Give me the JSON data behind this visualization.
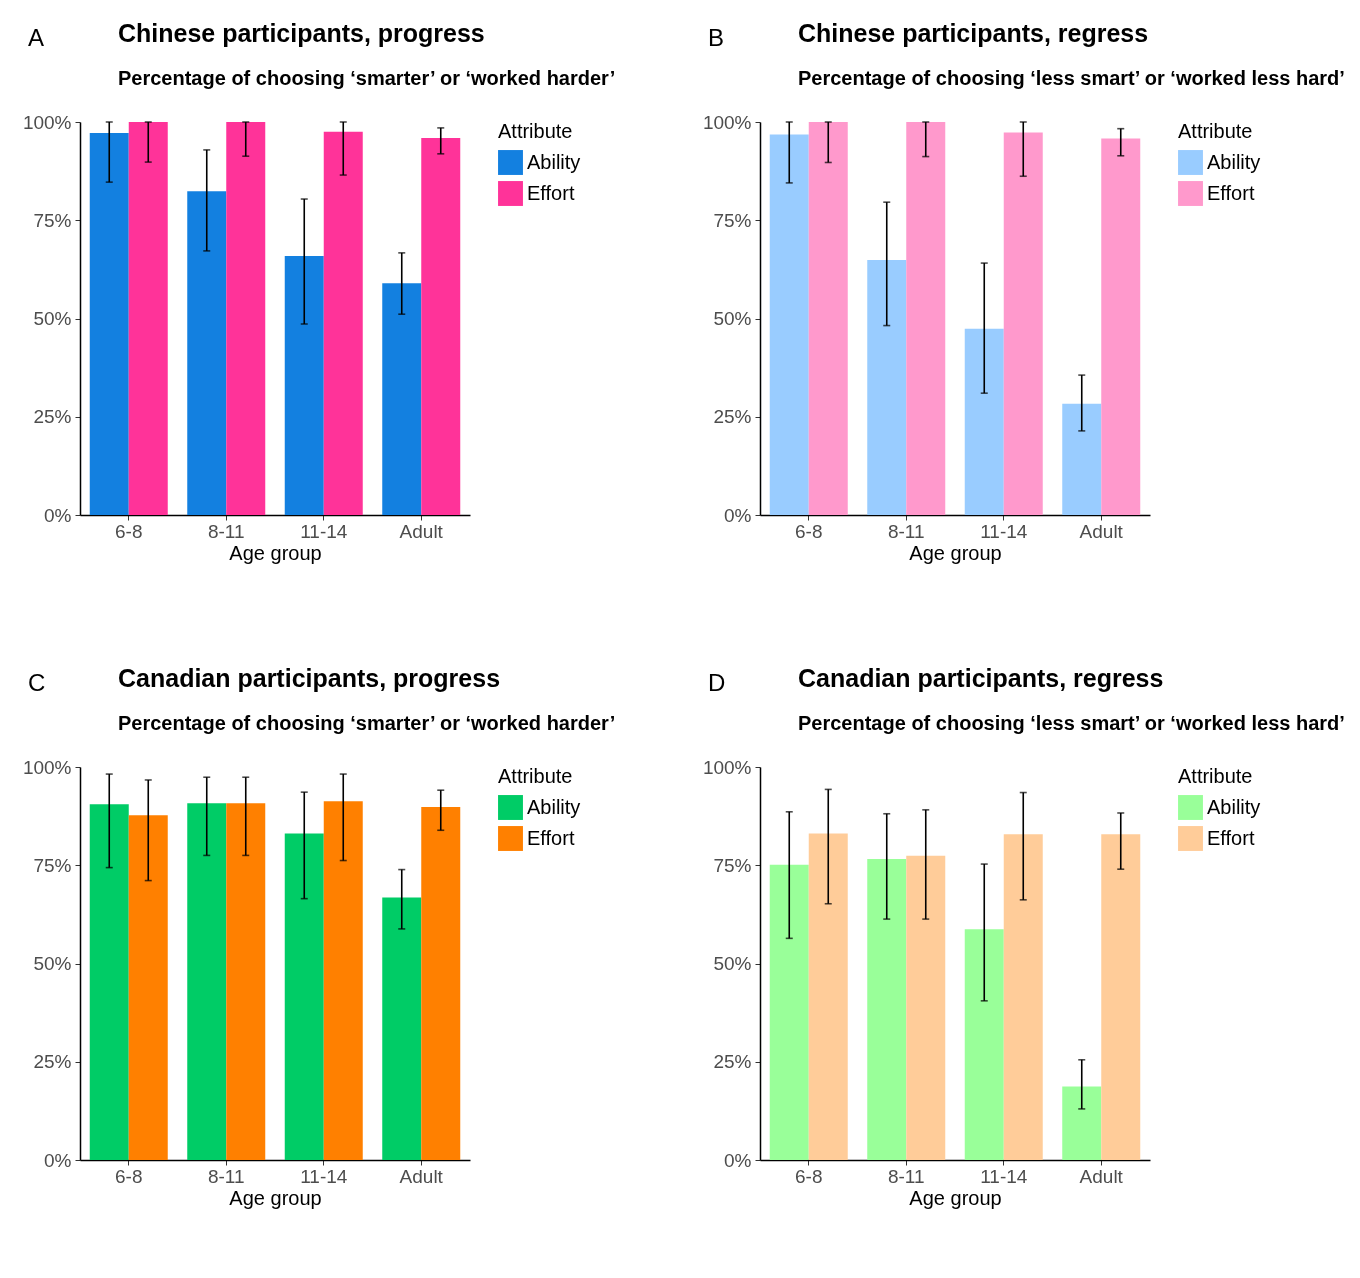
{
  "chart_data": [
    {
      "type": "bar",
      "title": "Chinese participants, progress",
      "subtitle": "Percentage of choosing ‘smarter’ or ‘worked harder’",
      "annotations": [
        "A"
      ],
      "xlabel": "Age group",
      "legend_title": "Attribute",
      "legend": "right",
      "categories": [
        "6-8",
        "8-11",
        "11-14",
        "Adult"
      ],
      "ylim": [
        0,
        100
      ],
      "yticks": [
        {
          "value": 0,
          "label": "0%"
        },
        {
          "value": 25,
          "label": "25%"
        },
        {
          "value": 50,
          "label": "50%"
        },
        {
          "value": 75,
          "label": "75%"
        },
        {
          "value": 100,
          "label": "100%"
        }
      ],
      "series": [
        {
          "name": "Ability",
          "color": "#1380e0",
          "values": [
            97.2,
            82.4,
            65.9,
            59.0
          ],
          "errors": [
            [
              84.7,
              100
            ],
            [
              67.2,
              92.9
            ],
            [
              48.6,
              80.4
            ],
            [
              51.1,
              66.7
            ]
          ]
        },
        {
          "name": "Effort",
          "color": "#ff3399",
          "values": [
            100,
            100,
            97.5,
            95.9
          ],
          "errors": [
            [
              89.8,
              100
            ],
            [
              91.3,
              100
            ],
            [
              86.5,
              100
            ],
            [
              91.9,
              98.5
            ]
          ]
        }
      ]
    },
    {
      "type": "bar",
      "title": "Chinese participants, regress",
      "subtitle": "Percentage of choosing ‘less smart’ or ‘worked less hard’",
      "annotations": [
        "B"
      ],
      "xlabel": "Age group",
      "legend_title": "Attribute",
      "legend": "right",
      "categories": [
        "6-8",
        "8-11",
        "11-14",
        "Adult"
      ],
      "ylim": [
        0,
        100
      ],
      "yticks": [
        {
          "value": 0,
          "label": "0%"
        },
        {
          "value": 25,
          "label": "25%"
        },
        {
          "value": 50,
          "label": "50%"
        },
        {
          "value": 75,
          "label": "75%"
        },
        {
          "value": 100,
          "label": "100%"
        }
      ],
      "series": [
        {
          "name": "Ability",
          "color": "#99ccff",
          "values": [
            96.8,
            64.9,
            47.4,
            28.3
          ],
          "errors": [
            [
              84.5,
              100
            ],
            [
              48.2,
              79.6
            ],
            [
              31.0,
              64.1
            ],
            [
              21.4,
              35.6
            ]
          ]
        },
        {
          "name": "Effort",
          "color": "#ff99cc",
          "values": [
            100,
            100,
            97.3,
            95.8
          ],
          "errors": [
            [
              89.7,
              100
            ],
            [
              91.2,
              100
            ],
            [
              86.2,
              100
            ],
            [
              91.4,
              98.3
            ]
          ]
        }
      ]
    },
    {
      "type": "bar",
      "title": "Canadian participants, progress",
      "subtitle": "Percentage of choosing ‘smarter’ or ‘worked harder’",
      "annotations": [
        "C"
      ],
      "xlabel": "Age group",
      "legend_title": "Attribute",
      "legend": "right",
      "categories": [
        "6-8",
        "8-11",
        "11-14",
        "Adult"
      ],
      "ylim": [
        0,
        100
      ],
      "yticks": [
        {
          "value": 0,
          "label": "0%"
        },
        {
          "value": 25,
          "label": "25%"
        },
        {
          "value": 50,
          "label": "50%"
        },
        {
          "value": 75,
          "label": "75%"
        },
        {
          "value": 100,
          "label": "100%"
        }
      ],
      "series": [
        {
          "name": "Ability",
          "color": "#00cc66",
          "values": [
            90.5,
            90.8,
            83.1,
            66.8
          ],
          "errors": [
            [
              74.4,
              98.2
            ],
            [
              77.5,
              97.4
            ],
            [
              66.5,
              93.6
            ],
            [
              58.8,
              73.9
            ]
          ]
        },
        {
          "name": "Effort",
          "color": "#ff8000",
          "values": [
            87.7,
            90.8,
            91.3,
            89.8
          ],
          "errors": [
            [
              71.1,
              96.7
            ],
            [
              77.5,
              97.4
            ],
            [
              76.2,
              98.2
            ],
            [
              83.9,
              94.1
            ]
          ]
        }
      ]
    },
    {
      "type": "bar",
      "title": "Canadian participants, regress",
      "subtitle": "Percentage of choosing ‘less smart’ or ‘worked less hard’",
      "annotations": [
        "D"
      ],
      "xlabel": "Age group",
      "legend_title": "Attribute",
      "legend": "right",
      "categories": [
        "6-8",
        "8-11",
        "11-14",
        "Adult"
      ],
      "ylim": [
        0,
        100
      ],
      "yticks": [
        {
          "value": 0,
          "label": "0%"
        },
        {
          "value": 25,
          "label": "25%"
        },
        {
          "value": 50,
          "label": "50%"
        },
        {
          "value": 75,
          "label": "75%"
        },
        {
          "value": 100,
          "label": "100%"
        }
      ],
      "series": [
        {
          "name": "Ability",
          "color": "#99ff99",
          "values": [
            75.1,
            76.6,
            58.7,
            18.7
          ],
          "errors": [
            [
              56.4,
              88.6
            ],
            [
              61.3,
              88.1
            ],
            [
              40.5,
              75.3
            ],
            [
              13.0,
              25.5
            ]
          ]
        },
        {
          "name": "Effort",
          "color": "#ffcc99",
          "values": [
            83.1,
            77.4,
            82.9,
            82.9
          ],
          "errors": [
            [
              65.2,
              94.3
            ],
            [
              61.3,
              89.1
            ],
            [
              66.2,
              93.5
            ],
            [
              74.0,
              88.3
            ]
          ]
        }
      ]
    }
  ]
}
